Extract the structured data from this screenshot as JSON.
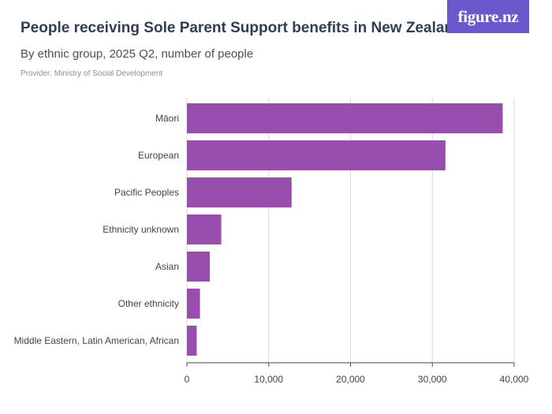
{
  "header": {
    "title": "People receiving Sole Parent Support benefits in New Zealand",
    "subtitle": "By ethnic group, 2025 Q2, number of people",
    "provider": "Provider: Ministry of Social Development",
    "logo_text": "figure.nz"
  },
  "colors": {
    "bar": "#974eaf",
    "logo_bg": "#6c58cc",
    "grid": "#d8d8d8",
    "axis": "#3b4a66"
  },
  "chart_data": {
    "type": "bar",
    "orientation": "horizontal",
    "title": "People receiving Sole Parent Support benefits in New Zealand",
    "subtitle": "By ethnic group, 2025 Q2, number of people",
    "categories": [
      "Māori",
      "European",
      "Pacific Peoples",
      "Ethnicity unknown",
      "Asian",
      "Other ethnicity",
      "Middle Eastern, Latin American, African"
    ],
    "values": [
      38600,
      31600,
      12800,
      4200,
      2800,
      1600,
      1200
    ],
    "xlim": [
      0,
      40000
    ],
    "xticks": [
      0,
      10000,
      20000,
      30000,
      40000
    ],
    "xtick_labels": [
      "0",
      "10,000",
      "20,000",
      "30,000",
      "40,000"
    ],
    "grid": true,
    "legend": "none"
  }
}
